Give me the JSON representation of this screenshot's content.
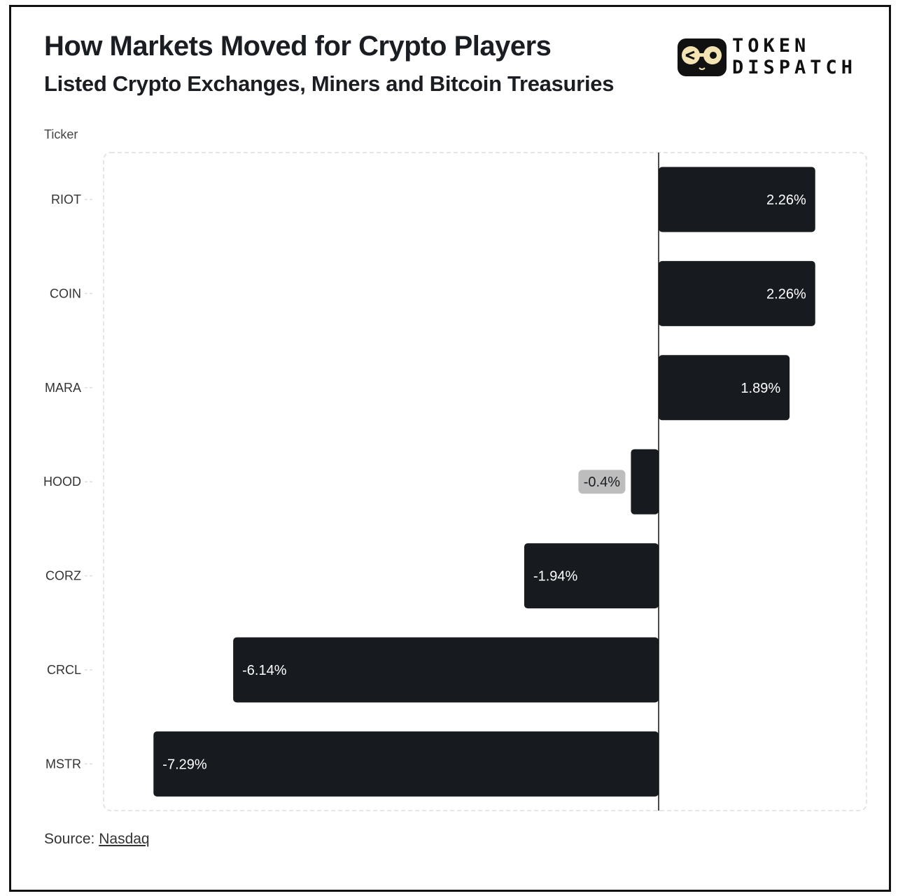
{
  "header": {
    "title": "How Markets Moved for Crypto Players",
    "subtitle": "Listed Crypto Exchanges, Miners and Bitcoin Treasuries"
  },
  "logo": {
    "line1": "TOKEN",
    "line2": "DISPATCH",
    "icon": "glasses-face-icon"
  },
  "footer": {
    "source_label": "Source:",
    "source_link": "Nasdaq"
  },
  "colors": {
    "bar": "#171b1f",
    "bar_label_text": "#ffffff",
    "small_label_bg": "#bdbdbd",
    "small_label_text": "#1a1d21",
    "gridline": "#dddddd",
    "zero_line": "#111111"
  },
  "chart_data": {
    "type": "bar",
    "orientation": "horizontal",
    "ylabel": "Ticker",
    "categories": [
      "RIOT",
      "COIN",
      "MARA",
      "HOOD",
      "CORZ",
      "CRCL",
      "MSTR"
    ],
    "values": [
      2.26,
      2.26,
      1.89,
      -0.4,
      -1.94,
      -6.14,
      -7.29
    ],
    "data_labels": [
      "2.26%",
      "2.26%",
      "1.89%",
      "-0.4%",
      "-1.94%",
      "-6.14%",
      "-7.29%"
    ],
    "xlim": [
      -7.99,
      3.03
    ],
    "grid": false
  }
}
